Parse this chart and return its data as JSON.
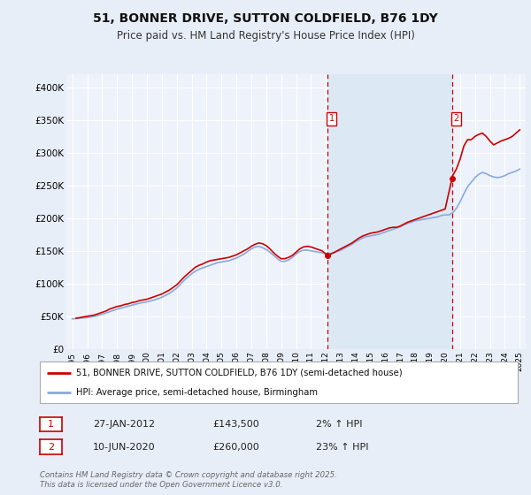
{
  "title": "51, BONNER DRIVE, SUTTON COLDFIELD, B76 1DY",
  "subtitle": "Price paid vs. HM Land Registry's House Price Index (HPI)",
  "legend_line1": "51, BONNER DRIVE, SUTTON COLDFIELD, B76 1DY (semi-detached house)",
  "legend_line2": "HPI: Average price, semi-detached house, Birmingham",
  "footer": "Contains HM Land Registry data © Crown copyright and database right 2025.\nThis data is licensed under the Open Government Licence v3.0.",
  "annotation1": {
    "label": "1",
    "date": "27-JAN-2012",
    "price": 143500,
    "pct": "2% ↑ HPI"
  },
  "annotation2": {
    "label": "2",
    "date": "10-JUN-2020",
    "price": 260000,
    "pct": "23% ↑ HPI"
  },
  "property_color": "#cc0000",
  "hpi_color": "#88aadd",
  "shade_color": "#dde8f5",
  "background_color": "#e8eef8",
  "plot_bg": "#eef2fa",
  "grid_color": "#ffffff",
  "ylim": [
    0,
    420000
  ],
  "yticks": [
    0,
    50000,
    100000,
    150000,
    200000,
    250000,
    300000,
    350000,
    400000
  ],
  "ytick_labels": [
    "£0",
    "£50K",
    "£100K",
    "£150K",
    "£200K",
    "£250K",
    "£300K",
    "£350K",
    "£400K"
  ],
  "property_data": {
    "years": [
      1995.25,
      1995.5,
      1995.75,
      1996.0,
      1996.25,
      1996.5,
      1996.75,
      1997.0,
      1997.25,
      1997.5,
      1997.75,
      1998.0,
      1998.25,
      1998.5,
      1998.75,
      1999.0,
      1999.25,
      1999.5,
      1999.75,
      2000.0,
      2000.25,
      2000.5,
      2000.75,
      2001.0,
      2001.25,
      2001.5,
      2001.75,
      2002.0,
      2002.25,
      2002.5,
      2002.75,
      2003.0,
      2003.25,
      2003.5,
      2003.75,
      2004.0,
      2004.25,
      2004.5,
      2004.75,
      2005.0,
      2005.25,
      2005.5,
      2005.75,
      2006.0,
      2006.25,
      2006.5,
      2006.75,
      2007.0,
      2007.25,
      2007.5,
      2007.75,
      2008.0,
      2008.25,
      2008.5,
      2008.75,
      2009.0,
      2009.25,
      2009.5,
      2009.75,
      2010.0,
      2010.25,
      2010.5,
      2010.75,
      2011.0,
      2011.25,
      2011.5,
      2011.75,
      2012.08,
      2012.25,
      2012.5,
      2012.75,
      2013.0,
      2013.25,
      2013.5,
      2013.75,
      2014.0,
      2014.25,
      2014.5,
      2014.75,
      2015.0,
      2015.25,
      2015.5,
      2015.75,
      2016.0,
      2016.25,
      2016.5,
      2016.75,
      2017.0,
      2017.25,
      2017.5,
      2017.75,
      2018.0,
      2018.25,
      2018.5,
      2018.75,
      2019.0,
      2019.25,
      2019.5,
      2019.75,
      2020.0,
      2020.45,
      2020.5,
      2020.75,
      2021.0,
      2021.25,
      2021.5,
      2021.75,
      2022.0,
      2022.25,
      2022.5,
      2022.75,
      2023.0,
      2023.25,
      2023.5,
      2023.75,
      2024.0,
      2024.25,
      2024.5,
      2024.75,
      2025.0
    ],
    "values": [
      47000,
      48000,
      49000,
      50000,
      51000,
      52000,
      54000,
      56000,
      58000,
      61000,
      63000,
      65000,
      66000,
      68000,
      69000,
      71000,
      72000,
      74000,
      75000,
      76000,
      78000,
      80000,
      82000,
      84000,
      87000,
      90000,
      94000,
      98000,
      104000,
      110000,
      115000,
      120000,
      125000,
      128000,
      130000,
      133000,
      135000,
      136000,
      137000,
      138000,
      139000,
      140000,
      142000,
      144000,
      147000,
      150000,
      153000,
      157000,
      160000,
      162000,
      161000,
      158000,
      153000,
      147000,
      142000,
      138000,
      138000,
      140000,
      143000,
      148000,
      153000,
      156000,
      157000,
      156000,
      154000,
      152000,
      150000,
      143500,
      144000,
      147000,
      150000,
      153000,
      156000,
      159000,
      162000,
      166000,
      170000,
      173000,
      175000,
      177000,
      178000,
      179000,
      181000,
      183000,
      185000,
      186000,
      186000,
      188000,
      191000,
      194000,
      196000,
      198000,
      200000,
      202000,
      204000,
      206000,
      208000,
      210000,
      212000,
      214000,
      260000,
      265000,
      275000,
      290000,
      310000,
      320000,
      320000,
      325000,
      328000,
      330000,
      325000,
      318000,
      312000,
      315000,
      318000,
      320000,
      322000,
      325000,
      330000,
      335000
    ]
  },
  "hpi_data": {
    "years": [
      1995.0,
      1995.25,
      1995.5,
      1995.75,
      1996.0,
      1996.25,
      1996.5,
      1996.75,
      1997.0,
      1997.25,
      1997.5,
      1997.75,
      1998.0,
      1998.25,
      1998.5,
      1998.75,
      1999.0,
      1999.25,
      1999.5,
      1999.75,
      2000.0,
      2000.25,
      2000.5,
      2000.75,
      2001.0,
      2001.25,
      2001.5,
      2001.75,
      2002.0,
      2002.25,
      2002.5,
      2002.75,
      2003.0,
      2003.25,
      2003.5,
      2003.75,
      2004.0,
      2004.25,
      2004.5,
      2004.75,
      2005.0,
      2005.25,
      2005.5,
      2005.75,
      2006.0,
      2006.25,
      2006.5,
      2006.75,
      2007.0,
      2007.25,
      2007.5,
      2007.75,
      2008.0,
      2008.25,
      2008.5,
      2008.75,
      2009.0,
      2009.25,
      2009.5,
      2009.75,
      2010.0,
      2010.25,
      2010.5,
      2010.75,
      2011.0,
      2011.25,
      2011.5,
      2011.75,
      2012.0,
      2012.25,
      2012.5,
      2012.75,
      2013.0,
      2013.25,
      2013.5,
      2013.75,
      2014.0,
      2014.25,
      2014.5,
      2014.75,
      2015.0,
      2015.25,
      2015.5,
      2015.75,
      2016.0,
      2016.25,
      2016.5,
      2016.75,
      2017.0,
      2017.25,
      2017.5,
      2017.75,
      2018.0,
      2018.25,
      2018.5,
      2018.75,
      2019.0,
      2019.25,
      2019.5,
      2019.75,
      2020.0,
      2020.25,
      2020.5,
      2020.75,
      2021.0,
      2021.25,
      2021.5,
      2021.75,
      2022.0,
      2022.25,
      2022.5,
      2022.75,
      2023.0,
      2023.25,
      2023.5,
      2023.75,
      2024.0,
      2024.25,
      2024.5,
      2024.75,
      2025.0
    ],
    "values": [
      46000,
      46500,
      47000,
      47500,
      48000,
      49000,
      50000,
      51500,
      53000,
      55000,
      57000,
      59000,
      61000,
      62500,
      64000,
      65500,
      67000,
      68500,
      70000,
      71000,
      72000,
      73500,
      75000,
      77000,
      79000,
      82000,
      85000,
      89000,
      93000,
      99000,
      105000,
      110000,
      115000,
      119000,
      122000,
      124000,
      126000,
      128000,
      130000,
      132000,
      133000,
      134000,
      135000,
      137000,
      139000,
      142000,
      145000,
      149000,
      153000,
      156000,
      157000,
      155000,
      152000,
      148000,
      143000,
      138000,
      134000,
      134000,
      136000,
      140000,
      145000,
      149000,
      151000,
      151000,
      150000,
      149000,
      148000,
      147000,
      146000,
      146000,
      147000,
      149000,
      151000,
      154000,
      157000,
      160000,
      164000,
      167000,
      170000,
      172000,
      173000,
      174000,
      175000,
      177000,
      179000,
      181000,
      183000,
      185000,
      187000,
      190000,
      192000,
      194000,
      196000,
      197000,
      198000,
      199000,
      200000,
      201000,
      202000,
      204000,
      205000,
      205000,
      208000,
      215000,
      225000,
      237000,
      248000,
      255000,
      262000,
      267000,
      270000,
      268000,
      265000,
      263000,
      262000,
      263000,
      265000,
      268000,
      270000,
      272000,
      275000
    ]
  },
  "sale1_year": 2012.08,
  "sale1_price": 143500,
  "sale2_year": 2020.45,
  "sale2_price": 260000,
  "xmin": 1994.6,
  "xmax": 2025.4
}
